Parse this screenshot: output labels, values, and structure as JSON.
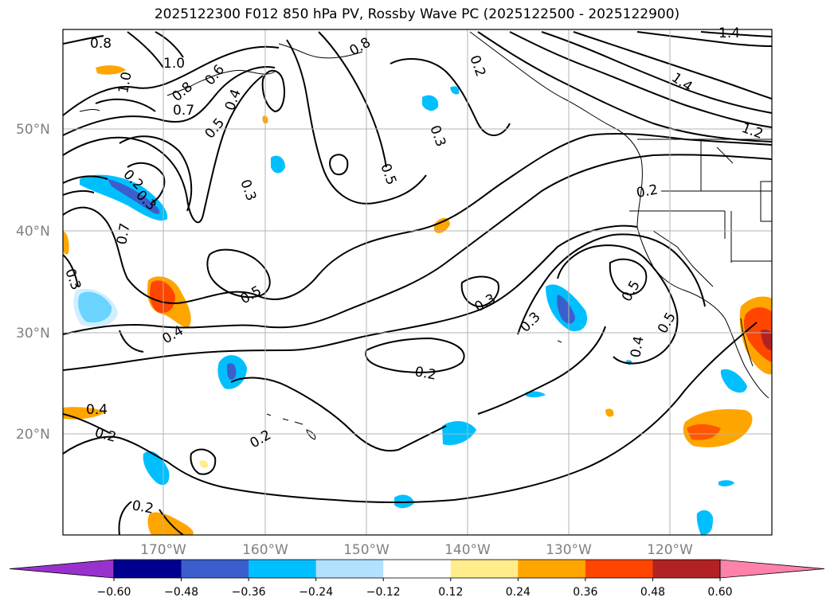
{
  "title": "2025122300 F012 850 hPa PV, Rossby Wave PC (2025122500 - 2025122900)",
  "lat_labels": [
    "50°N",
    "40°N",
    "30°N",
    "20°N"
  ],
  "lon_labels": [
    "170°W",
    "160°W",
    "150°W",
    "140°W",
    "130°W",
    "120°W"
  ],
  "contour_labels": [
    "0.8",
    "1.0",
    "1.0",
    "0.8",
    "0.6",
    "0.7",
    "0.4",
    "0.5",
    "0.3",
    "0.8",
    "0.5",
    "0.3",
    "0.7",
    "0.2",
    "0.3",
    "0.3",
    "0.4",
    "0.5",
    "0.4",
    "0.3",
    "0.2",
    "0.2",
    "0.3",
    "0.5",
    "0.5",
    "0.4",
    "0.2",
    "0.2",
    "1.4",
    "1.4",
    "1.2",
    "0.2",
    "0.2"
  ],
  "colorbar": {
    "ticks": [
      "−0.60",
      "−0.48",
      "−0.36",
      "−0.24",
      "−0.12",
      "0.12",
      "0.24",
      "0.36",
      "0.48",
      "0.60"
    ],
    "colors": [
      "#9932cc",
      "#000090",
      "#3a5fcd",
      "#00bfff",
      "#b0e2ff",
      "#ffffff",
      "#ffec8b",
      "#ffa500",
      "#ff4500",
      "#b22222",
      "#ff82ab"
    ]
  }
}
